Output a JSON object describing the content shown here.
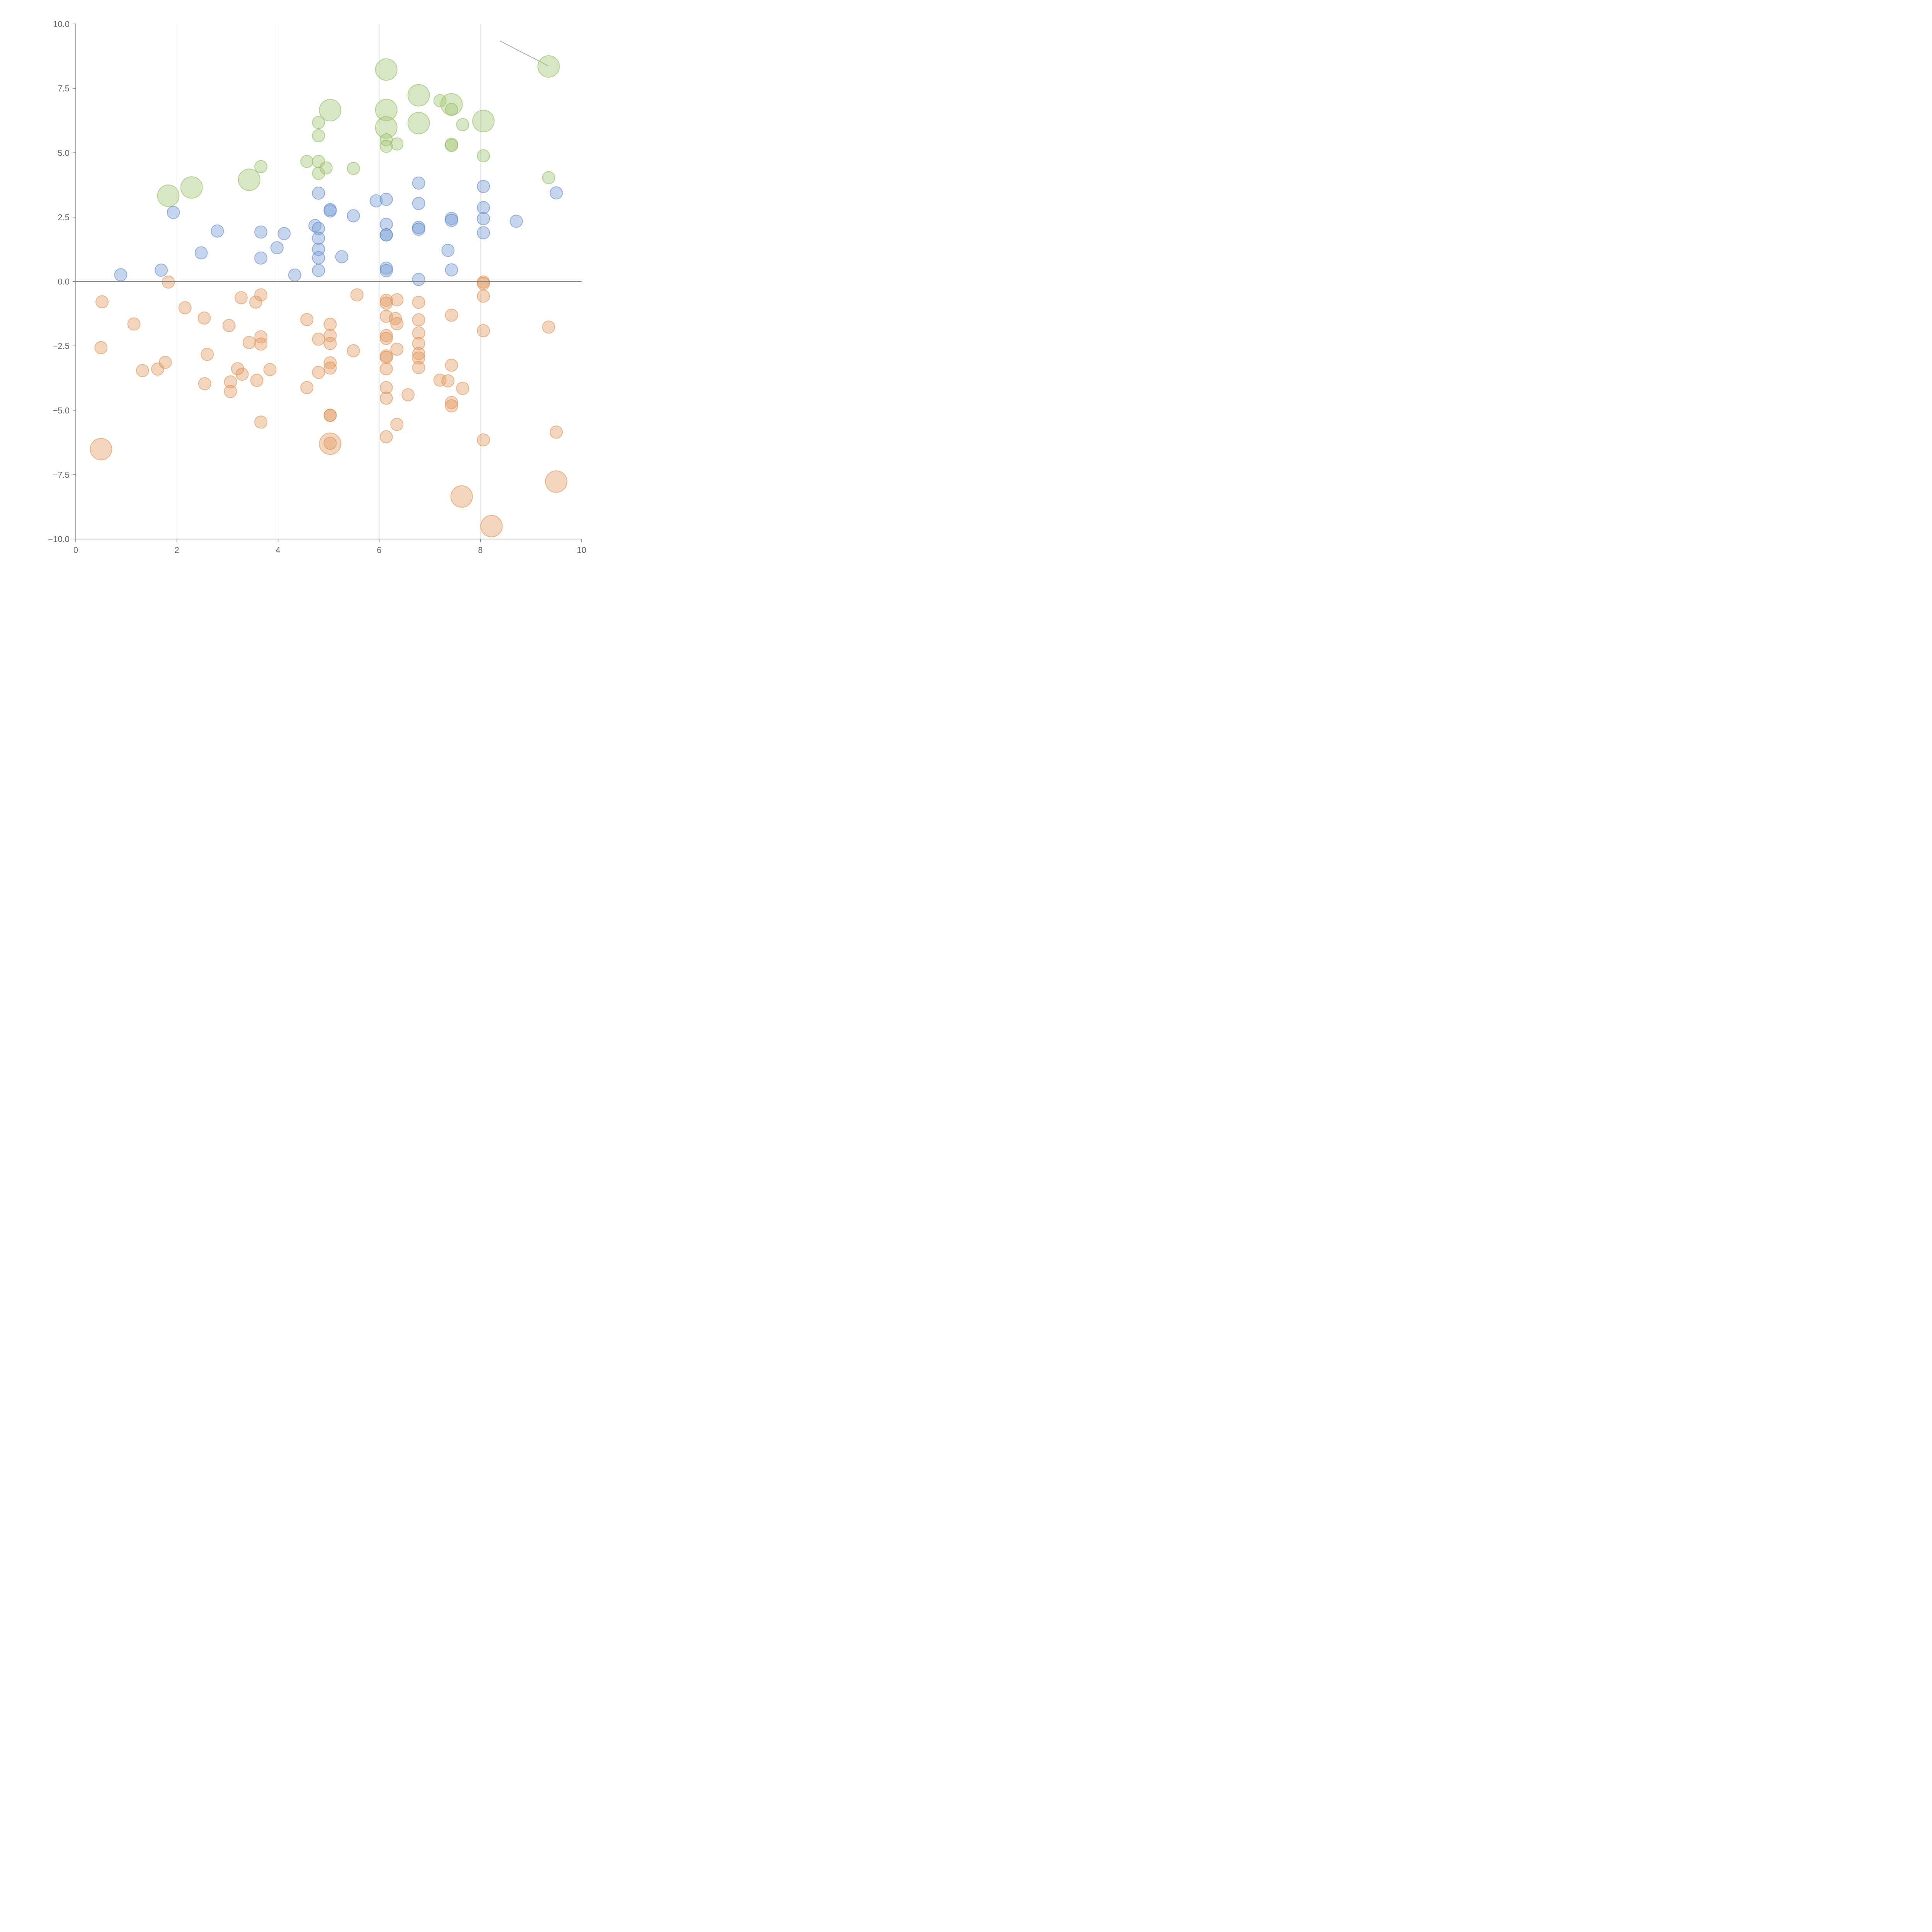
{
  "chart_data": {
    "type": "scatter",
    "title": "",
    "xlabel": "",
    "ylabel": "",
    "xlim": [
      0,
      10
    ],
    "ylim": [
      -10,
      10
    ],
    "grid": {
      "vertical": true,
      "horizontal": false
    },
    "x_ticks": [
      {
        "value": 0,
        "label": "0"
      },
      {
        "value": 2,
        "label": "2"
      },
      {
        "value": 4,
        "label": "4"
      },
      {
        "value": 6,
        "label": "6"
      },
      {
        "value": 8,
        "label": "8"
      },
      {
        "value": 10,
        "label": "10"
      }
    ],
    "y_ticks": [
      {
        "value": 10,
        "label": "10.0"
      },
      {
        "value": 7.5,
        "label": "7.5"
      },
      {
        "value": 5,
        "label": "5.0"
      },
      {
        "value": 2.5,
        "label": "2.5"
      },
      {
        "value": 0,
        "label": "0.0"
      },
      {
        "value": -2.5,
        "label": "−2.5"
      },
      {
        "value": -5,
        "label": "−5.0"
      },
      {
        "value": -7.5,
        "label": "−7.5"
      },
      {
        "value": -10,
        "label": "−10.0"
      }
    ],
    "reference_line": {
      "y": 0
    },
    "series": [
      {
        "name": "green",
        "color": "#a9c97a",
        "stroke": "#8cb35a",
        "points": [
          [
            1.83,
            3.33,
            2
          ],
          [
            2.29,
            3.65,
            2
          ],
          [
            3.43,
            3.95,
            2
          ],
          [
            3.66,
            4.46,
            1
          ],
          [
            4.57,
            4.66,
            1
          ],
          [
            4.8,
            4.66,
            1
          ],
          [
            4.8,
            4.2,
            1
          ],
          [
            4.8,
            5.66,
            1
          ],
          [
            4.8,
            6.17,
            1
          ],
          [
            4.95,
            4.41,
            1
          ],
          [
            5.03,
            6.65,
            2
          ],
          [
            5.49,
            4.39,
            1
          ],
          [
            6.14,
            8.23,
            2
          ],
          [
            6.14,
            6.66,
            2
          ],
          [
            6.14,
            5.98,
            2
          ],
          [
            6.14,
            5.5,
            1
          ],
          [
            6.14,
            5.25,
            1
          ],
          [
            6.35,
            5.34,
            1
          ],
          [
            6.78,
            7.23,
            2
          ],
          [
            6.78,
            6.15,
            2
          ],
          [
            7.2,
            7.02,
            1
          ],
          [
            7.43,
            6.88,
            2
          ],
          [
            7.43,
            6.68,
            1
          ],
          [
            7.43,
            5.33,
            1
          ],
          [
            7.43,
            5.28,
            1
          ],
          [
            7.65,
            6.09,
            1
          ],
          [
            8.06,
            6.23,
            2
          ],
          [
            8.06,
            4.88,
            1
          ],
          [
            9.35,
            8.35,
            2
          ],
          [
            9.35,
            4.03,
            1
          ]
        ]
      },
      {
        "name": "blue",
        "color": "#7fa1d6",
        "stroke": "#5a7fbf",
        "points": [
          [
            0.89,
            0.26,
            1
          ],
          [
            1.69,
            0.44,
            1
          ],
          [
            1.93,
            2.68,
            1
          ],
          [
            2.48,
            1.11,
            1
          ],
          [
            2.8,
            1.96,
            1
          ],
          [
            3.66,
            1.92,
            1
          ],
          [
            3.66,
            0.91,
            1
          ],
          [
            3.98,
            1.31,
            1
          ],
          [
            4.12,
            1.86,
            1
          ],
          [
            4.33,
            0.25,
            1
          ],
          [
            4.73,
            2.17,
            1
          ],
          [
            4.8,
            3.43,
            1
          ],
          [
            4.8,
            2.06,
            1
          ],
          [
            4.8,
            1.68,
            1
          ],
          [
            4.8,
            1.25,
            1
          ],
          [
            4.8,
            0.92,
            1
          ],
          [
            4.8,
            0.43,
            1
          ],
          [
            5.03,
            2.79,
            1
          ],
          [
            5.03,
            2.74,
            1
          ],
          [
            5.26,
            0.96,
            1
          ],
          [
            5.49,
            2.55,
            1
          ],
          [
            5.94,
            3.13,
            1
          ],
          [
            6.14,
            3.19,
            1
          ],
          [
            6.14,
            2.22,
            1
          ],
          [
            6.14,
            1.81,
            1
          ],
          [
            6.14,
            1.81,
            1
          ],
          [
            6.14,
            0.52,
            1
          ],
          [
            6.14,
            0.42,
            1
          ],
          [
            6.78,
            3.82,
            1
          ],
          [
            6.78,
            3.03,
            1
          ],
          [
            6.78,
            2.1,
            1
          ],
          [
            6.78,
            2.03,
            1
          ],
          [
            6.78,
            0.08,
            1
          ],
          [
            7.36,
            1.21,
            1
          ],
          [
            7.43,
            2.45,
            1
          ],
          [
            7.43,
            2.37,
            1
          ],
          [
            7.43,
            0.45,
            1
          ],
          [
            8.06,
            3.69,
            1
          ],
          [
            8.06,
            2.87,
            1
          ],
          [
            8.06,
            2.44,
            1
          ],
          [
            8.06,
            1.89,
            1
          ],
          [
            8.71,
            2.34,
            1
          ],
          [
            9.5,
            3.44,
            1
          ]
        ]
      },
      {
        "name": "orange",
        "color": "#e5a06a",
        "stroke": "#d98a4a",
        "points": [
          [
            0.5,
            -6.51,
            2
          ],
          [
            0.52,
            -0.79,
            1
          ],
          [
            0.5,
            -2.57,
            1
          ],
          [
            1.15,
            -1.65,
            1
          ],
          [
            1.32,
            -3.46,
            1
          ],
          [
            1.62,
            -3.4,
            1
          ],
          [
            1.77,
            -3.14,
            1
          ],
          [
            1.83,
            -0.02,
            1
          ],
          [
            2.16,
            -1.02,
            1
          ],
          [
            2.54,
            -1.42,
            1
          ],
          [
            2.55,
            -3.97,
            1
          ],
          [
            2.6,
            -2.83,
            1
          ],
          [
            3.03,
            -1.71,
            1
          ],
          [
            3.06,
            -3.9,
            1
          ],
          [
            3.06,
            -4.27,
            1
          ],
          [
            3.2,
            -3.39,
            1
          ],
          [
            3.27,
            -0.63,
            1
          ],
          [
            3.29,
            -3.6,
            1
          ],
          [
            3.43,
            -2.37,
            1
          ],
          [
            3.56,
            -0.8,
            1
          ],
          [
            3.58,
            -3.84,
            1
          ],
          [
            3.66,
            -0.52,
            1
          ],
          [
            3.66,
            -2.15,
            1
          ],
          [
            3.66,
            -2.43,
            1
          ],
          [
            3.66,
            -5.46,
            1
          ],
          [
            3.84,
            -3.42,
            1
          ],
          [
            4.57,
            -1.48,
            1
          ],
          [
            4.57,
            -4.12,
            1
          ],
          [
            4.8,
            -2.24,
            1
          ],
          [
            4.8,
            -3.53,
            1
          ],
          [
            5.03,
            -1.66,
            1
          ],
          [
            5.03,
            -2.1,
            1
          ],
          [
            5.03,
            -2.41,
            1
          ],
          [
            5.03,
            -3.16,
            1
          ],
          [
            5.03,
            -3.36,
            1
          ],
          [
            5.03,
            -5.19,
            1
          ],
          [
            5.03,
            -5.2,
            1
          ],
          [
            5.03,
            -6.3,
            2
          ],
          [
            5.03,
            -6.28,
            1
          ],
          [
            5.49,
            -2.69,
            1
          ],
          [
            5.56,
            -0.52,
            1
          ],
          [
            6.14,
            -0.73,
            1
          ],
          [
            6.14,
            -0.84,
            1
          ],
          [
            6.14,
            -1.35,
            1
          ],
          [
            6.14,
            -2.1,
            1
          ],
          [
            6.14,
            -2.21,
            1
          ],
          [
            6.14,
            -2.89,
            1
          ],
          [
            6.14,
            -2.95,
            1
          ],
          [
            6.14,
            -3.39,
            1
          ],
          [
            6.14,
            -4.12,
            1
          ],
          [
            6.14,
            -4.53,
            1
          ],
          [
            6.14,
            -6.03,
            1
          ],
          [
            6.32,
            -1.44,
            1
          ],
          [
            6.35,
            -0.71,
            1
          ],
          [
            6.35,
            -1.64,
            1
          ],
          [
            6.35,
            -2.63,
            1
          ],
          [
            6.35,
            -5.55,
            1
          ],
          [
            6.57,
            -4.4,
            1
          ],
          [
            6.78,
            -0.81,
            1
          ],
          [
            6.78,
            -1.49,
            1
          ],
          [
            6.78,
            -2.0,
            1
          ],
          [
            6.78,
            -2.41,
            1
          ],
          [
            6.78,
            -2.8,
            1
          ],
          [
            6.78,
            -2.97,
            1
          ],
          [
            6.78,
            -3.34,
            1
          ],
          [
            7.2,
            -3.83,
            1
          ],
          [
            7.36,
            -3.86,
            1
          ],
          [
            7.43,
            -1.31,
            1
          ],
          [
            7.43,
            -3.25,
            1
          ],
          [
            7.43,
            -4.7,
            1
          ],
          [
            7.43,
            -4.83,
            1
          ],
          [
            7.63,
            -8.35,
            2
          ],
          [
            7.65,
            -4.15,
            1
          ],
          [
            8.06,
            -0.02,
            1
          ],
          [
            8.06,
            -0.08,
            1
          ],
          [
            8.06,
            -0.57,
            1
          ],
          [
            8.06,
            -1.91,
            1
          ],
          [
            8.06,
            -6.15,
            1
          ],
          [
            8.22,
            -9.5,
            2
          ],
          [
            9.35,
            -1.77,
            1
          ],
          [
            9.5,
            -5.85,
            1
          ],
          [
            9.5,
            -7.77,
            2
          ]
        ]
      }
    ]
  }
}
